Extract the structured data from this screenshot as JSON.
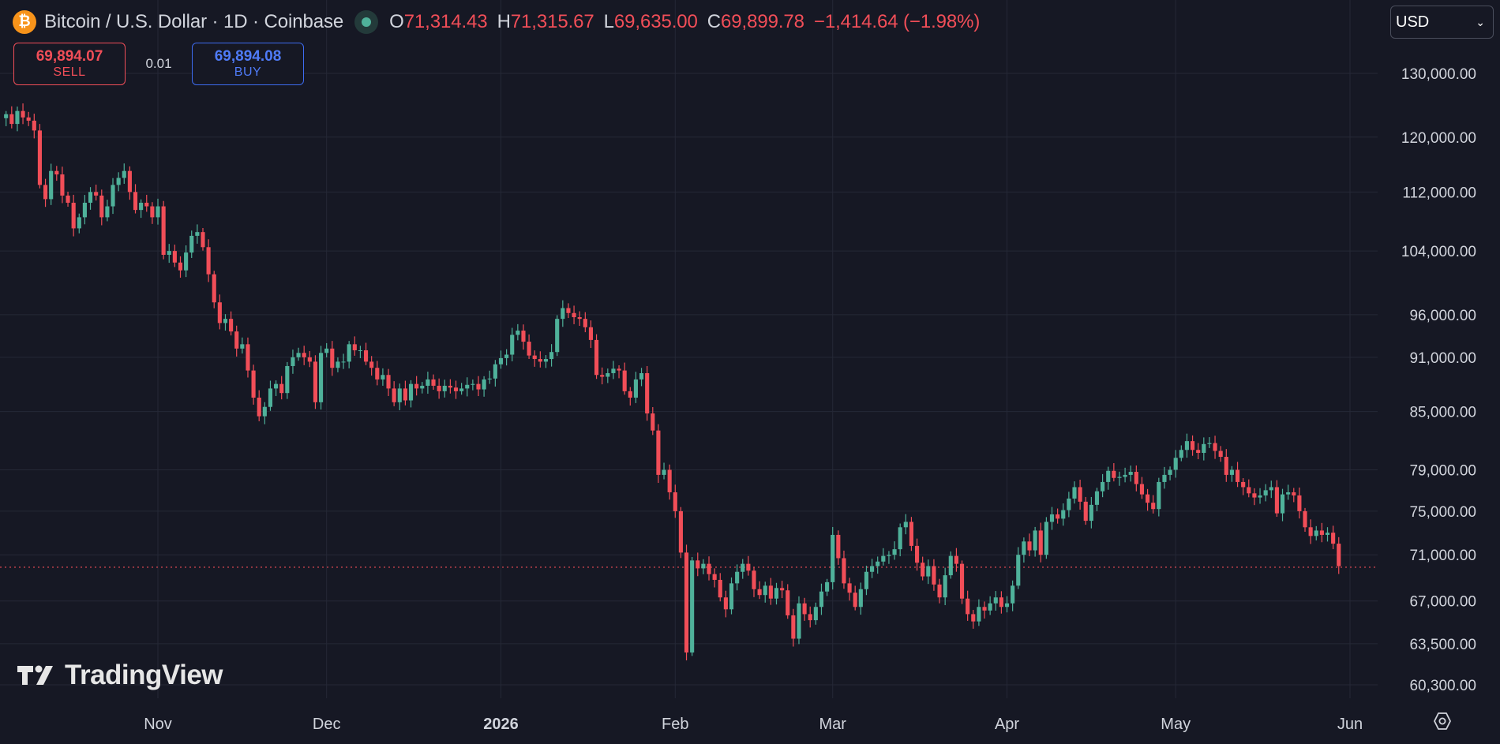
{
  "header": {
    "symbol_icon": "bitcoin-icon",
    "symbol_icon_glyph": "₿",
    "symbol_title": "Bitcoin / U.S. Dollar · 1D · Coinbase",
    "market_status_icon": "market-open-dot-icon",
    "ohlc": {
      "open_key": "O",
      "open": "71,314.43",
      "high_key": "H",
      "high": "71,315.67",
      "low_key": "L",
      "low": "69,635.00",
      "close_key": "C",
      "close": "69,899.78",
      "change": "−1,414.64 (−1.98%)"
    }
  },
  "trade": {
    "sell_price": "69,894.07",
    "sell_label": "SELL",
    "spread": "0.01",
    "buy_price": "69,894.08",
    "buy_label": "BUY"
  },
  "currency": {
    "selected": "USD",
    "chevron_icon": "chevron-down-icon"
  },
  "watermark": {
    "text": "TradingView",
    "logo_icon": "tradingview-logo-icon"
  },
  "settings": {
    "icon": "settings-gear-icon"
  },
  "colors": {
    "background": "#161824",
    "grid": "#252836",
    "up": "#4fb19a",
    "down": "#f14e58",
    "axis_text": "#d1d4dc",
    "buy": "#3d6bf0"
  },
  "chart_data": {
    "type": "candlestick",
    "title": "Bitcoin / U.S. Dollar · 1D · Coinbase",
    "y_scale": "log",
    "ylim": [
      58000,
      133000
    ],
    "grid": true,
    "y_ticks": [
      60300,
      63500,
      67000,
      71000,
      75000,
      79000,
      85000,
      91000,
      96000,
      104000,
      112000,
      120000,
      130000
    ],
    "y_tick_labels": [
      "60,300.00",
      "63,500.00",
      "67,000.00",
      "71,000.00",
      "75,000.00",
      "79,000.00",
      "85,000.00",
      "91,000.00",
      "96,000.00",
      "104,000.00",
      "112,000.00",
      "120,000.00",
      "130,000.00"
    ],
    "x_ticks": [
      {
        "label": "Nov",
        "date": "2025-11-01",
        "bold": false
      },
      {
        "label": "Dec",
        "date": "2025-12-01",
        "bold": false
      },
      {
        "label": "2026",
        "date": "2026-01-01",
        "bold": true
      },
      {
        "label": "Feb",
        "date": "2026-02-01",
        "bold": false
      },
      {
        "label": "Mar",
        "date": "2026-03-01",
        "bold": false
      },
      {
        "label": "Apr",
        "date": "2026-04-01",
        "bold": false
      },
      {
        "label": "May",
        "date": "2026-05-01",
        "bold": false
      },
      {
        "label": "Jun",
        "date": "2026-06-01",
        "bold": false
      }
    ],
    "last_price": 69899.78,
    "start_date": "2025-10-05",
    "closes": [
      123500,
      122000,
      124000,
      123000,
      122500,
      121000,
      113000,
      111000,
      115000,
      114500,
      111500,
      110500,
      107000,
      108500,
      110500,
      112000,
      111500,
      108500,
      110000,
      113000,
      114000,
      115000,
      112000,
      109500,
      110500,
      110000,
      108500,
      110000,
      103500,
      104000,
      102500,
      101500,
      103800,
      106000,
      106500,
      104500,
      101000,
      97500,
      95000,
      95500,
      94000,
      92000,
      92500,
      89500,
      86500,
      84500,
      85500,
      87500,
      88000,
      87000,
      90000,
      91000,
      91500,
      91000,
      90500,
      86000,
      91500,
      92000,
      89800,
      90500,
      90500,
      92500,
      91800,
      91800,
      90500,
      89800,
      88500,
      89000,
      87500,
      86000,
      87500,
      86200,
      88000,
      87500,
      87800,
      88500,
      87800,
      87200,
      87800,
      87600,
      87200,
      87500,
      87900,
      88000,
      87400,
      88500,
      88600,
      90200,
      90900,
      91300,
      93600,
      94100,
      92800,
      91200,
      90800,
      90500,
      90800,
      91600,
      95500,
      96800,
      96200,
      95700,
      95500,
      94500,
      93000,
      89000,
      88800,
      89200,
      89700,
      89500,
      87200,
      86500,
      88500,
      89200,
      84800,
      83000,
      78500,
      79000,
      76800,
      75000,
      71200,
      62800,
      70500,
      69800,
      70200,
      69300,
      68800,
      67300,
      66300,
      68500,
      69500,
      70200,
      69600,
      68000,
      67500,
      68300,
      67200,
      68100,
      67900,
      65800,
      63900,
      66800,
      65900,
      65400,
      66500,
      67800,
      68600,
      72800,
      70700,
      68500,
      67700,
      66500,
      68000,
      69500,
      70000,
      70400,
      70900,
      71000,
      71500,
      73500,
      74000,
      71800,
      70300,
      69100,
      70000,
      68400,
      67300,
      69200,
      70900,
      70200,
      67200,
      65900,
      65300,
      66500,
      66200,
      66800,
      67300,
      66500,
      66800,
      68300,
      71000,
      72200,
      71400,
      73200,
      71000,
      74000,
      74700,
      74300,
      75100,
      76200,
      77300,
      75900,
      74100,
      75600,
      76900,
      77800,
      78900,
      78200,
      78300,
      78500,
      78800,
      77600,
      76600,
      75800,
      75200,
      77800,
      78500,
      79000,
      80200,
      81000,
      81900,
      81000,
      80700,
      81600,
      81700,
      80900,
      80300,
      78500,
      79000,
      77800,
      77300,
      76700,
      76300,
      76500,
      77000,
      77300,
      74800,
      76600,
      76800,
      76500,
      75000,
      73500,
      72700,
      73200,
      72800,
      73000,
      72000,
      70000
    ]
  }
}
